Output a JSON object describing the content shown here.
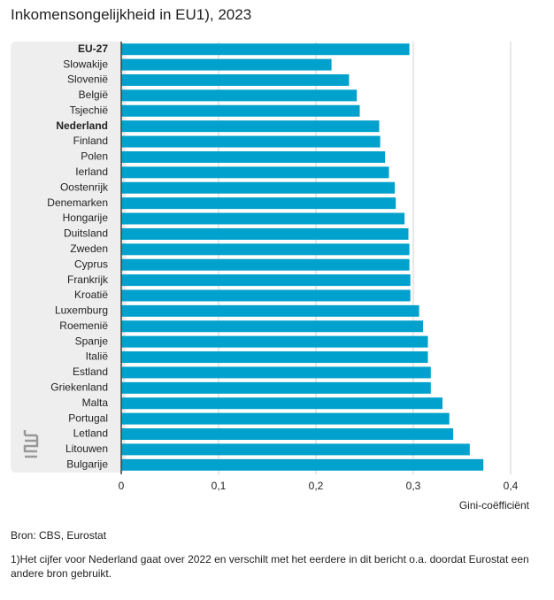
{
  "chart_data": {
    "type": "hbar",
    "title": "Inkomensongelijkheid in EU1), 2023",
    "categories": [
      "EU-27",
      "Slowakije",
      "Slovenië",
      "België",
      "Tsjechië",
      "Nederland",
      "Finland",
      "Polen",
      "Ierland",
      "Oostenrijk",
      "Denemarken",
      "Hongarije",
      "Duitsland",
      "Zweden",
      "Cyprus",
      "Frankrijk",
      "Kroatië",
      "Luxemburg",
      "Roemenië",
      "Spanje",
      "Italië",
      "Estland",
      "Griekenland",
      "Malta",
      "Portugal",
      "Letland",
      "Litouwen",
      "Bulgarije"
    ],
    "values": [
      0.296,
      0.216,
      0.234,
      0.242,
      0.245,
      0.265,
      0.266,
      0.271,
      0.275,
      0.281,
      0.282,
      0.291,
      0.295,
      0.296,
      0.296,
      0.297,
      0.297,
      0.306,
      0.31,
      0.315,
      0.315,
      0.318,
      0.318,
      0.33,
      0.337,
      0.341,
      0.358,
      0.372
    ],
    "bold_categories": [
      0,
      5
    ],
    "color": "#00a1cd",
    "xlim": [
      0,
      0.4
    ],
    "xticks": [
      0,
      {
        "value": 0.1,
        "label": "0,1"
      },
      {
        "value": 0.2,
        "label": "0,2"
      },
      {
        "value": 0.3,
        "label": "0,3"
      },
      {
        "value": 0.4,
        "label": "0,4"
      }
    ],
    "xlabel": "Gini-coëfficiënt",
    "grid": true,
    "source": "Bron: CBS, Eurostat",
    "footnote": "1)Het cijfer voor Nederland gaat over 2022 en verschilt met het eerdere in dit bericht o.a. doordat Eurostat een andere bron gebruikt."
  }
}
